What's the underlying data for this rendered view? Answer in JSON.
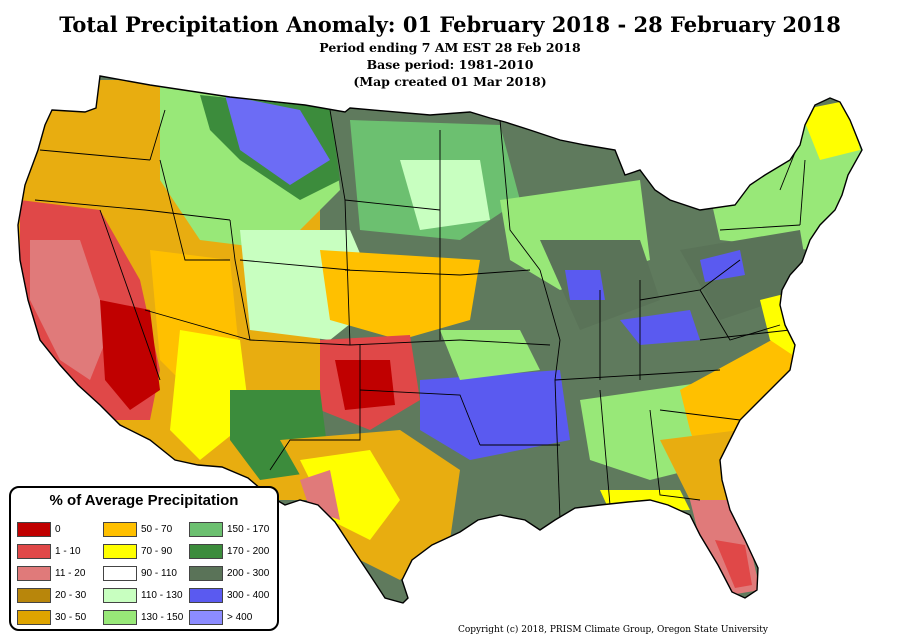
{
  "title": "Total Precipitation Anomaly: 01 February 2018 - 28 February 2018",
  "subtitle_lines": [
    "Period ending 7 AM EST 28 Feb 2018",
    "Base period: 1981-2010",
    "(Map created 01 Mar 2018)"
  ],
  "legend": {
    "title": "% of Average Precipitation",
    "items": [
      {
        "label": "0",
        "color": "#c00000"
      },
      {
        "label": "1 - 10",
        "color": "#e04848"
      },
      {
        "label": "11 - 20",
        "color": "#e07a7a"
      },
      {
        "label": "20 - 30",
        "color": "#b8860b"
      },
      {
        "label": "30 - 50",
        "color": "#dea400"
      },
      {
        "label": "50 - 70",
        "color": "#ffc000"
      },
      {
        "label": "70 - 90",
        "color": "#ffff00"
      },
      {
        "label": "90 - 110",
        "color": "#ffffff"
      },
      {
        "label": "110 - 130",
        "color": "#c8ffc0"
      },
      {
        "label": "130 - 150",
        "color": "#98e878"
      },
      {
        "label": "150 - 170",
        "color": "#6cc070"
      },
      {
        "label": "170 - 200",
        "color": "#3c8c3c"
      },
      {
        "label": "200 - 300",
        "color": "#5a7358"
      },
      {
        "label": "300 - 400",
        "color": "#5a5af0"
      },
      {
        "label": "> 400",
        "color": "#8c8cff"
      }
    ]
  },
  "copyright": "Copyright (c) 2018, PRISM Climate Group, Oregon State University"
}
